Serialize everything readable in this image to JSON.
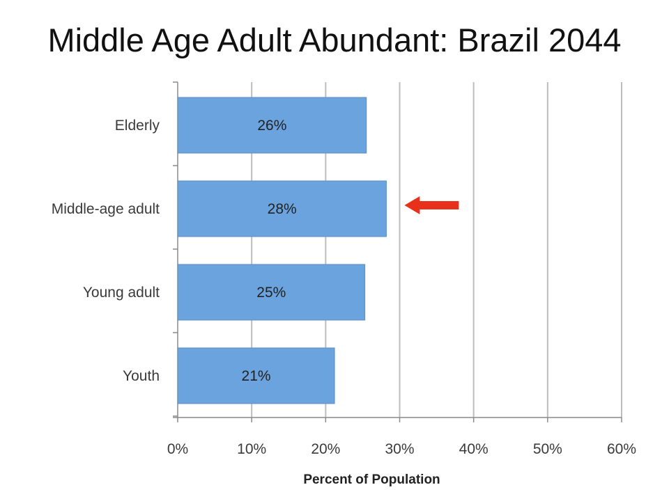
{
  "slide": {
    "title": "Middle Age Adult Abundant: Brazil 2044"
  },
  "colors": {
    "bar": "#6aa3dd",
    "bar_edge": "#5b8fc4",
    "grid": "#bdbdbd",
    "axis": "#8a8a8a",
    "arrow": "#e8311a"
  },
  "chart_data": {
    "type": "bar",
    "orientation": "horizontal",
    "title": "Middle Age Adult Abundant: Brazil 2044",
    "categories": [
      "Elderly",
      "Middle-age adult",
      "Young adult",
      "Youth"
    ],
    "values": [
      25.5,
      28.2,
      25.3,
      21.2
    ],
    "data_labels": [
      "26%",
      "28%",
      "25%",
      "21%"
    ],
    "xlabel": "Percent of Population",
    "ylabel": "",
    "xlim": [
      0,
      60
    ],
    "xticks": [
      0,
      10,
      20,
      30,
      40,
      50,
      60
    ],
    "xtick_labels": [
      "0%",
      "10%",
      "20%",
      "30%",
      "40%",
      "50%",
      "60%"
    ],
    "grid": "vertical",
    "legend": "none",
    "annotation": {
      "type": "arrow",
      "color": "red",
      "points_to": "Middle-age adult"
    }
  }
}
